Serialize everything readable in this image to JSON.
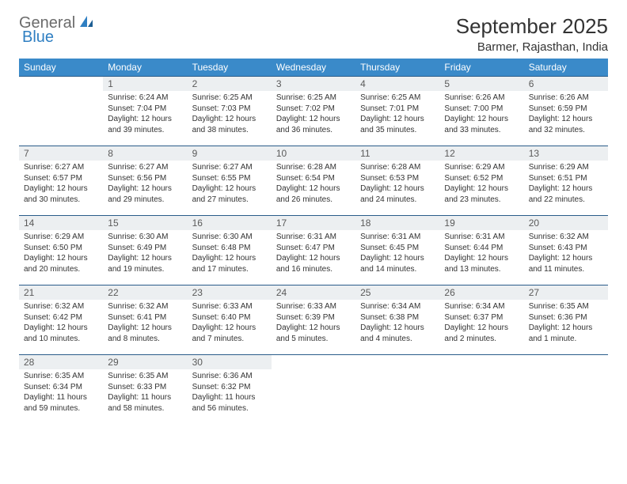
{
  "logo": {
    "part1": "General",
    "part2": "Blue"
  },
  "title": "September 2025",
  "location": "Barmer, Rajasthan, India",
  "colors": {
    "header_bg": "#3a8ac9",
    "header_text": "#ffffff",
    "daynum_bg": "#eceff1",
    "row_border": "#2a5c8a",
    "logo_gray": "#6b6b6b",
    "logo_blue": "#2f7fc2",
    "page_bg": "#ffffff",
    "body_text": "#333333"
  },
  "typography": {
    "title_fontsize": 26,
    "location_fontsize": 15,
    "header_fontsize": 12,
    "daynum_fontsize": 12,
    "content_fontsize": 10
  },
  "columns": [
    "Sunday",
    "Monday",
    "Tuesday",
    "Wednesday",
    "Thursday",
    "Friday",
    "Saturday"
  ],
  "weeks": [
    [
      null,
      {
        "n": "1",
        "sr": "Sunrise: 6:24 AM",
        "ss": "Sunset: 7:04 PM",
        "d1": "Daylight: 12 hours",
        "d2": "and 39 minutes."
      },
      {
        "n": "2",
        "sr": "Sunrise: 6:25 AM",
        "ss": "Sunset: 7:03 PM",
        "d1": "Daylight: 12 hours",
        "d2": "and 38 minutes."
      },
      {
        "n": "3",
        "sr": "Sunrise: 6:25 AM",
        "ss": "Sunset: 7:02 PM",
        "d1": "Daylight: 12 hours",
        "d2": "and 36 minutes."
      },
      {
        "n": "4",
        "sr": "Sunrise: 6:25 AM",
        "ss": "Sunset: 7:01 PM",
        "d1": "Daylight: 12 hours",
        "d2": "and 35 minutes."
      },
      {
        "n": "5",
        "sr": "Sunrise: 6:26 AM",
        "ss": "Sunset: 7:00 PM",
        "d1": "Daylight: 12 hours",
        "d2": "and 33 minutes."
      },
      {
        "n": "6",
        "sr": "Sunrise: 6:26 AM",
        "ss": "Sunset: 6:59 PM",
        "d1": "Daylight: 12 hours",
        "d2": "and 32 minutes."
      }
    ],
    [
      {
        "n": "7",
        "sr": "Sunrise: 6:27 AM",
        "ss": "Sunset: 6:57 PM",
        "d1": "Daylight: 12 hours",
        "d2": "and 30 minutes."
      },
      {
        "n": "8",
        "sr": "Sunrise: 6:27 AM",
        "ss": "Sunset: 6:56 PM",
        "d1": "Daylight: 12 hours",
        "d2": "and 29 minutes."
      },
      {
        "n": "9",
        "sr": "Sunrise: 6:27 AM",
        "ss": "Sunset: 6:55 PM",
        "d1": "Daylight: 12 hours",
        "d2": "and 27 minutes."
      },
      {
        "n": "10",
        "sr": "Sunrise: 6:28 AM",
        "ss": "Sunset: 6:54 PM",
        "d1": "Daylight: 12 hours",
        "d2": "and 26 minutes."
      },
      {
        "n": "11",
        "sr": "Sunrise: 6:28 AM",
        "ss": "Sunset: 6:53 PM",
        "d1": "Daylight: 12 hours",
        "d2": "and 24 minutes."
      },
      {
        "n": "12",
        "sr": "Sunrise: 6:29 AM",
        "ss": "Sunset: 6:52 PM",
        "d1": "Daylight: 12 hours",
        "d2": "and 23 minutes."
      },
      {
        "n": "13",
        "sr": "Sunrise: 6:29 AM",
        "ss": "Sunset: 6:51 PM",
        "d1": "Daylight: 12 hours",
        "d2": "and 22 minutes."
      }
    ],
    [
      {
        "n": "14",
        "sr": "Sunrise: 6:29 AM",
        "ss": "Sunset: 6:50 PM",
        "d1": "Daylight: 12 hours",
        "d2": "and 20 minutes."
      },
      {
        "n": "15",
        "sr": "Sunrise: 6:30 AM",
        "ss": "Sunset: 6:49 PM",
        "d1": "Daylight: 12 hours",
        "d2": "and 19 minutes."
      },
      {
        "n": "16",
        "sr": "Sunrise: 6:30 AM",
        "ss": "Sunset: 6:48 PM",
        "d1": "Daylight: 12 hours",
        "d2": "and 17 minutes."
      },
      {
        "n": "17",
        "sr": "Sunrise: 6:31 AM",
        "ss": "Sunset: 6:47 PM",
        "d1": "Daylight: 12 hours",
        "d2": "and 16 minutes."
      },
      {
        "n": "18",
        "sr": "Sunrise: 6:31 AM",
        "ss": "Sunset: 6:45 PM",
        "d1": "Daylight: 12 hours",
        "d2": "and 14 minutes."
      },
      {
        "n": "19",
        "sr": "Sunrise: 6:31 AM",
        "ss": "Sunset: 6:44 PM",
        "d1": "Daylight: 12 hours",
        "d2": "and 13 minutes."
      },
      {
        "n": "20",
        "sr": "Sunrise: 6:32 AM",
        "ss": "Sunset: 6:43 PM",
        "d1": "Daylight: 12 hours",
        "d2": "and 11 minutes."
      }
    ],
    [
      {
        "n": "21",
        "sr": "Sunrise: 6:32 AM",
        "ss": "Sunset: 6:42 PM",
        "d1": "Daylight: 12 hours",
        "d2": "and 10 minutes."
      },
      {
        "n": "22",
        "sr": "Sunrise: 6:32 AM",
        "ss": "Sunset: 6:41 PM",
        "d1": "Daylight: 12 hours",
        "d2": "and 8 minutes."
      },
      {
        "n": "23",
        "sr": "Sunrise: 6:33 AM",
        "ss": "Sunset: 6:40 PM",
        "d1": "Daylight: 12 hours",
        "d2": "and 7 minutes."
      },
      {
        "n": "24",
        "sr": "Sunrise: 6:33 AM",
        "ss": "Sunset: 6:39 PM",
        "d1": "Daylight: 12 hours",
        "d2": "and 5 minutes."
      },
      {
        "n": "25",
        "sr": "Sunrise: 6:34 AM",
        "ss": "Sunset: 6:38 PM",
        "d1": "Daylight: 12 hours",
        "d2": "and 4 minutes."
      },
      {
        "n": "26",
        "sr": "Sunrise: 6:34 AM",
        "ss": "Sunset: 6:37 PM",
        "d1": "Daylight: 12 hours",
        "d2": "and 2 minutes."
      },
      {
        "n": "27",
        "sr": "Sunrise: 6:35 AM",
        "ss": "Sunset: 6:36 PM",
        "d1": "Daylight: 12 hours",
        "d2": "and 1 minute."
      }
    ],
    [
      {
        "n": "28",
        "sr": "Sunrise: 6:35 AM",
        "ss": "Sunset: 6:34 PM",
        "d1": "Daylight: 11 hours",
        "d2": "and 59 minutes."
      },
      {
        "n": "29",
        "sr": "Sunrise: 6:35 AM",
        "ss": "Sunset: 6:33 PM",
        "d1": "Daylight: 11 hours",
        "d2": "and 58 minutes."
      },
      {
        "n": "30",
        "sr": "Sunrise: 6:36 AM",
        "ss": "Sunset: 6:32 PM",
        "d1": "Daylight: 11 hours",
        "d2": "and 56 minutes."
      },
      null,
      null,
      null,
      null
    ]
  ]
}
